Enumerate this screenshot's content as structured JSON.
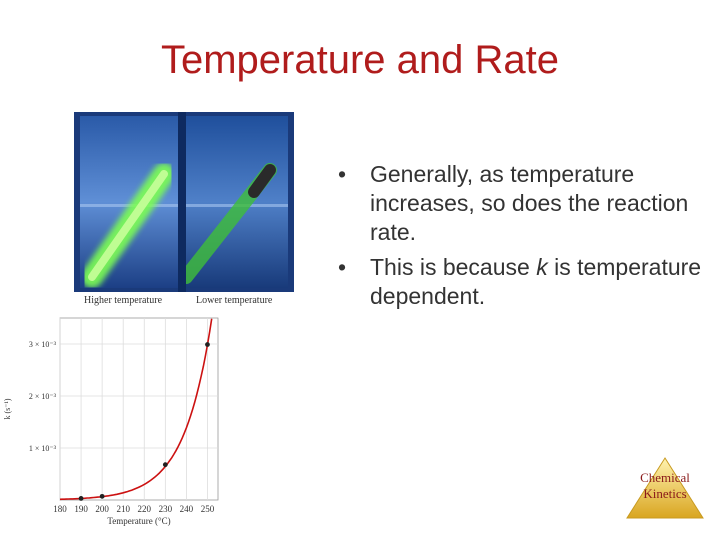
{
  "slide": {
    "title": "Temperature and Rate",
    "bullets": [
      {
        "marker": "•",
        "pre": "Generally, as temperature increases, so does the reaction rate.",
        "em": "",
        "post": ""
      },
      {
        "marker": "•",
        "pre": "This is because ",
        "em": "k",
        "post": " is temperature dependent."
      }
    ],
    "badge": {
      "line1": "Chemical",
      "line2": "Kinetics"
    }
  },
  "photo": {
    "left_caption": "Higher temperature",
    "right_caption": "Lower temperature",
    "colors": {
      "water": "#3a6fc0",
      "glow": "#7dff52",
      "tank": "#1b3f86"
    }
  },
  "chart_data": {
    "type": "line",
    "xlabel": "Temperature (°C)",
    "ylabel": "k (s⁻¹)",
    "x_ticks": [
      "180",
      "190",
      "200",
      "210",
      "220",
      "230",
      "240",
      "250"
    ],
    "y_ticks": [
      "1 × 10⁻³",
      "2 × 10⁻³",
      "3 × 10⁻³"
    ],
    "xlim": [
      180,
      255
    ],
    "ylim": [
      0,
      0.0035
    ],
    "points": [
      {
        "x": 190,
        "y": 3e-05
      },
      {
        "x": 200,
        "y": 7e-05
      },
      {
        "x": 230,
        "y": 0.00068
      },
      {
        "x": 250,
        "y": 0.00299
      }
    ],
    "curve_color": "#cc1111"
  }
}
